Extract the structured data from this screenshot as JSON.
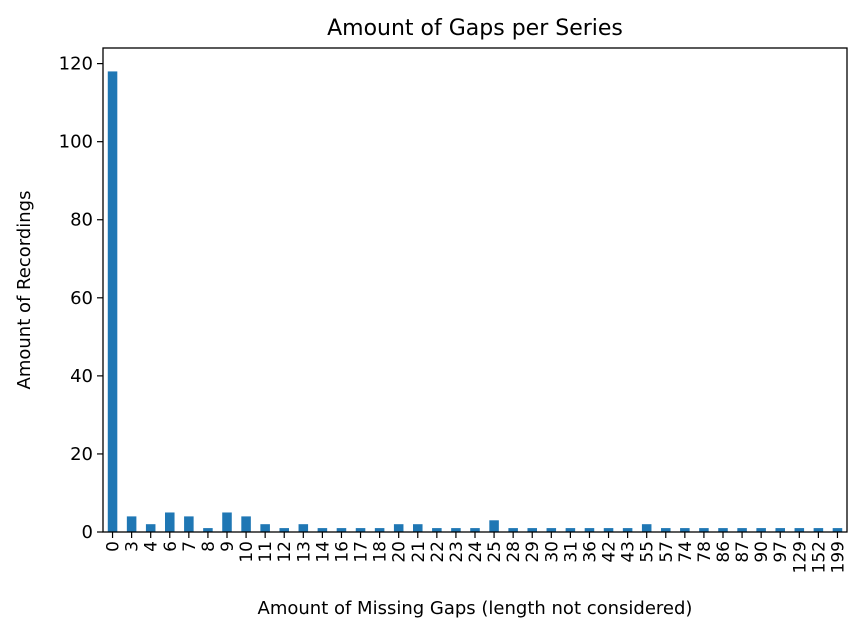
{
  "chart_data": {
    "type": "bar",
    "title": "Amount of Gaps per Series",
    "xlabel": "Amount of Missing Gaps (length not considered)",
    "ylabel": "Amount of Recordings",
    "categories": [
      "0",
      "3",
      "4",
      "6",
      "7",
      "8",
      "9",
      "10",
      "11",
      "12",
      "13",
      "14",
      "16",
      "17",
      "18",
      "20",
      "21",
      "22",
      "23",
      "24",
      "25",
      "28",
      "29",
      "30",
      "31",
      "36",
      "42",
      "43",
      "55",
      "57",
      "74",
      "78",
      "86",
      "87",
      "90",
      "97",
      "129",
      "152",
      "199"
    ],
    "values": [
      118,
      4,
      2,
      5,
      4,
      1,
      5,
      4,
      2,
      1,
      2,
      1,
      1,
      1,
      1,
      2,
      2,
      1,
      1,
      1,
      3,
      1,
      1,
      1,
      1,
      1,
      1,
      1,
      2,
      1,
      1,
      1,
      1,
      1,
      1,
      1,
      1,
      1,
      1
    ],
    "ylim": [
      0,
      124
    ],
    "yticks": [
      0,
      20,
      40,
      60,
      80,
      100,
      120
    ],
    "grid": false,
    "legend": "none",
    "bar_color": "#1f77b4"
  }
}
